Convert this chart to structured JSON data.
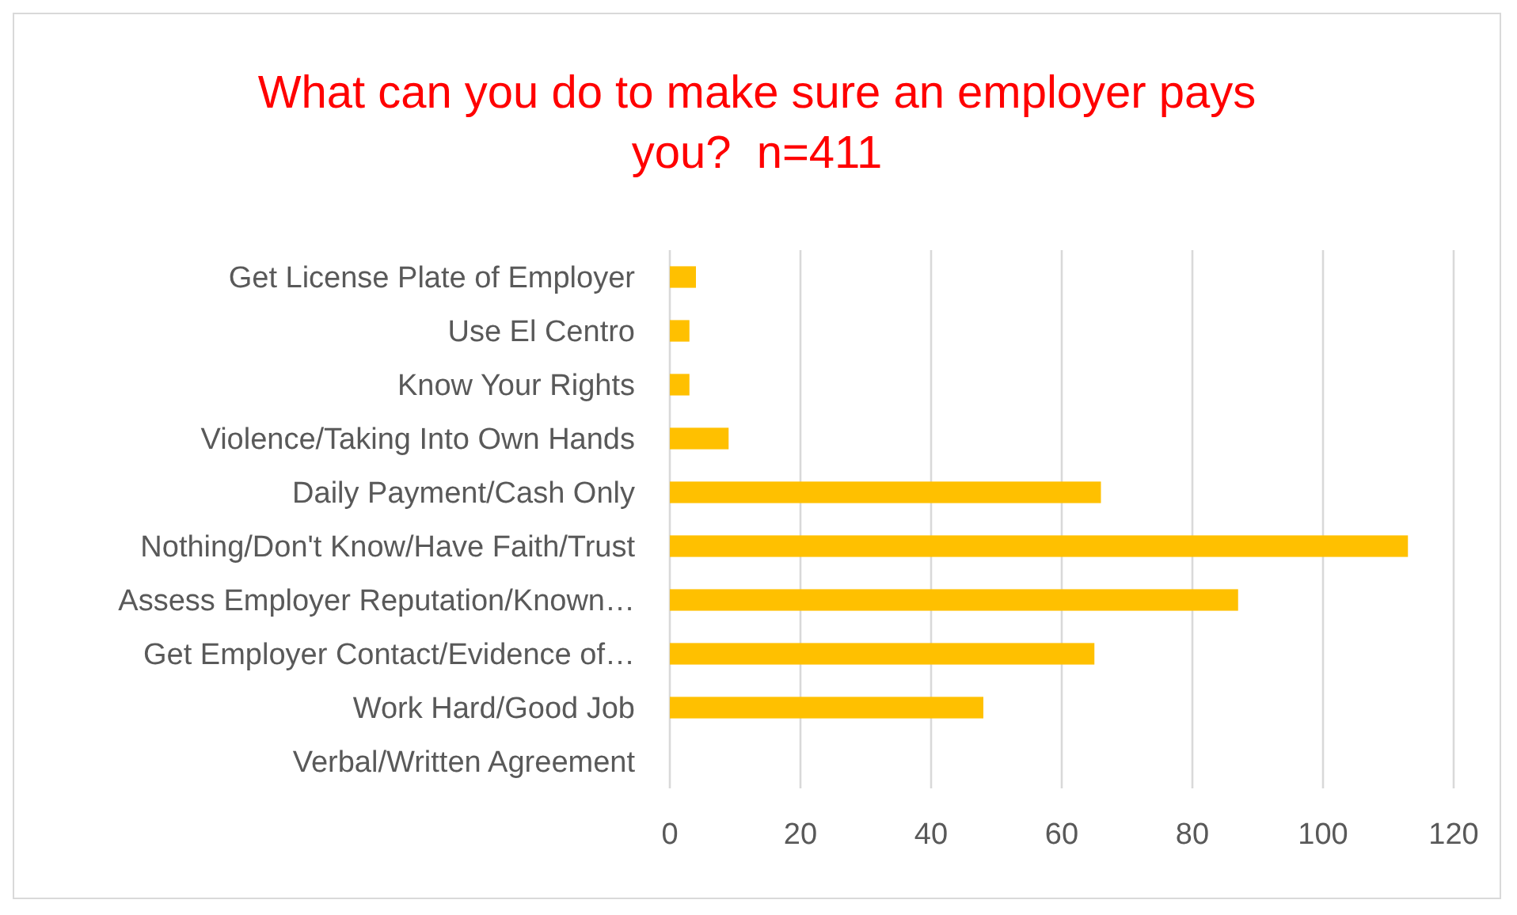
{
  "chart_data": {
    "type": "bar",
    "orientation": "horizontal",
    "title": "What can you do to make sure an employer pays you?  n=411",
    "categories": [
      "Get License Plate of Employer",
      "Use El Centro",
      "Know Your Rights",
      "Violence/Taking Into Own Hands",
      "Daily Payment/Cash Only",
      "Nothing/Don't Know/Have Faith/Trust",
      "Assess Employer Reputation/Known…",
      "Get Employer Contact/Evidence of…",
      "Work Hard/Good Job",
      "Verbal/Written Agreement"
    ],
    "values": [
      4,
      3,
      3,
      9,
      66,
      113,
      87,
      65,
      48,
      0
    ],
    "color": "#ffc000",
    "xlim": [
      0,
      120
    ],
    "xticks": [
      0,
      20,
      40,
      60,
      80,
      100,
      120
    ],
    "grid": "x"
  }
}
